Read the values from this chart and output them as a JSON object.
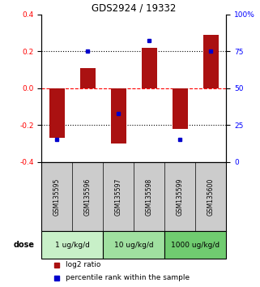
{
  "title": "GDS2924 / 19332",
  "samples": [
    "GSM135595",
    "GSM135596",
    "GSM135597",
    "GSM135598",
    "GSM135599",
    "GSM135600"
  ],
  "log2_ratio": [
    -0.27,
    0.11,
    -0.3,
    0.22,
    -0.22,
    0.29
  ],
  "percentile_rank": [
    15,
    75,
    33,
    82,
    15,
    75
  ],
  "dose_groups": [
    {
      "label": "1 ug/kg/d",
      "samples": [
        0,
        1
      ],
      "color": "#c8f0c8"
    },
    {
      "label": "10 ug/kg/d",
      "samples": [
        2,
        3
      ],
      "color": "#a0e0a0"
    },
    {
      "label": "1000 ug/kg/d",
      "samples": [
        4,
        5
      ],
      "color": "#70cc70"
    }
  ],
  "bar_color": "#aa1111",
  "dot_color": "#0000cc",
  "ylim_left": [
    -0.4,
    0.4
  ],
  "ylim_right": [
    0,
    100
  ],
  "yticks_left": [
    -0.4,
    -0.2,
    0.0,
    0.2,
    0.4
  ],
  "yticks_right": [
    0,
    25,
    50,
    75,
    100
  ],
  "ytick_labels_right": [
    "0",
    "25",
    "50",
    "75",
    "100%"
  ],
  "hlines": [
    0.2,
    0.0,
    -0.2
  ],
  "hline_colors": [
    "black",
    "red",
    "black"
  ],
  "bar_width": 0.5,
  "sample_box_color": "#cccccc",
  "dose_arrow_label": "dose",
  "legend_red_label": "log2 ratio",
  "legend_blue_label": "percentile rank within the sample"
}
